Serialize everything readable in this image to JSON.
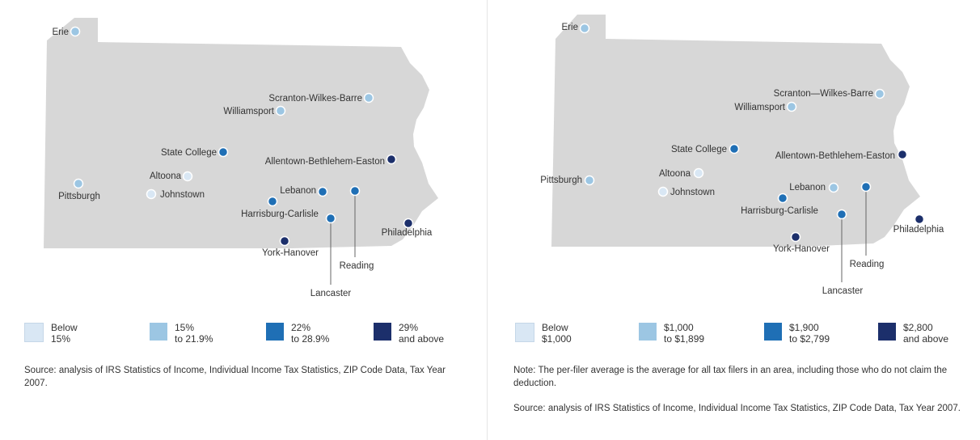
{
  "colors": {
    "state_fill": "#d7d7d7",
    "class_1": "#d9e7f4",
    "class_2": "#9cc6e3",
    "class_3": "#1f6fb5",
    "class_4": "#1c2f6b",
    "leader_line": "#666666"
  },
  "maps": [
    {
      "title": "",
      "legend": [
        {
          "text": "Below\n15%",
          "class": 1
        },
        {
          "text": "15%\nto 21.9%",
          "class": 2
        },
        {
          "text": "22%\nto 28.9%",
          "class": 3
        },
        {
          "text": "29%\nand above",
          "class": 4
        }
      ],
      "note": "",
      "source": "Source: analysis of IRS Statistics of Income, Individual Income Tax Statistics, ZIP Code Data, Tax Year 2007.",
      "cities": [
        {
          "name": "Erie",
          "class": 2
        },
        {
          "name": "Scranton-Wilkes-Barre",
          "class": 2
        },
        {
          "name": "Williamsport",
          "class": 2
        },
        {
          "name": "State College",
          "class": 3
        },
        {
          "name": "Allentown-Bethlehem-Easton",
          "class": 4
        },
        {
          "name": "Pittsburgh",
          "class": 2
        },
        {
          "name": "Altoona",
          "class": 1
        },
        {
          "name": "Johnstown",
          "class": 1
        },
        {
          "name": "Lebanon",
          "class": 3
        },
        {
          "name": "Harrisburg-Carlisle",
          "class": 3
        },
        {
          "name": "Reading",
          "class": 3
        },
        {
          "name": "Lancaster",
          "class": 3
        },
        {
          "name": "York-Hanover",
          "class": 4
        },
        {
          "name": "Philadelphia",
          "class": 4
        }
      ]
    },
    {
      "title": "",
      "legend": [
        {
          "text": "Below\n$1,000",
          "class": 1
        },
        {
          "text": "$1,000\nto $1,899",
          "class": 2
        },
        {
          "text": "$1,900\nto $2,799",
          "class": 3
        },
        {
          "text": "$2,800\nand above",
          "class": 4
        }
      ],
      "note": "Note: The per-filer average is the average for all tax filers in an area, including those who do not claim the deduction.",
      "source": "Source: analysis of IRS Statistics of Income, Individual Income Tax Statistics, ZIP Code Data, Tax Year 2007.",
      "cities": [
        {
          "name": "Erie",
          "class": 2
        },
        {
          "name": "Scranton—Wilkes-Barre",
          "class": 2
        },
        {
          "name": "Williamsport",
          "class": 2
        },
        {
          "name": "State College",
          "class": 3
        },
        {
          "name": "Allentown-Bethlehem-Easton",
          "class": 4
        },
        {
          "name": "Pittsburgh",
          "class": 2
        },
        {
          "name": "Altoona",
          "class": 1
        },
        {
          "name": "Johnstown",
          "class": 1
        },
        {
          "name": "Lebanon",
          "class": 2
        },
        {
          "name": "Harrisburg-Carlisle",
          "class": 3
        },
        {
          "name": "Reading",
          "class": 3
        },
        {
          "name": "Lancaster",
          "class": 3
        },
        {
          "name": "York-Hanover",
          "class": 4
        },
        {
          "name": "Philadelphia",
          "class": 4
        }
      ]
    }
  ]
}
